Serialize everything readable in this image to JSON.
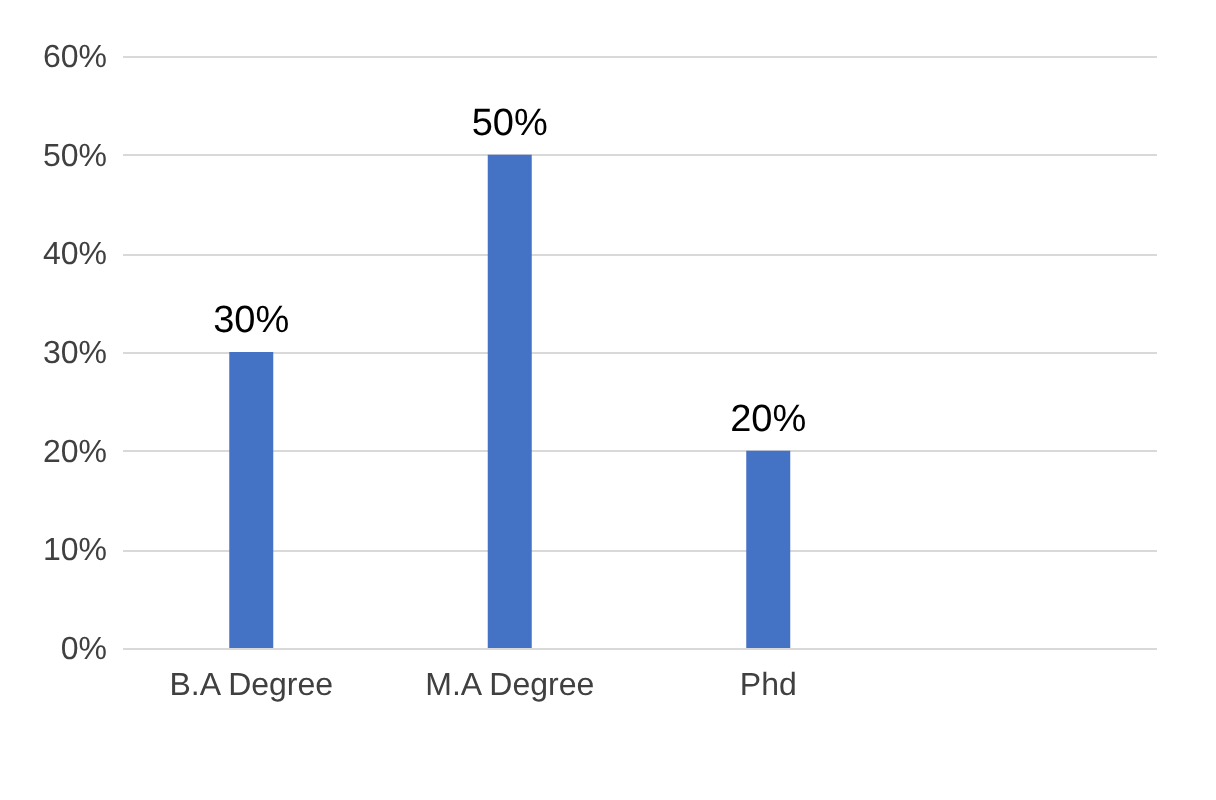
{
  "chart_data": {
    "type": "bar",
    "categories": [
      "B.A Degree",
      "M.A Degree",
      "Phd",
      null
    ],
    "values": [
      30,
      50,
      20,
      null
    ],
    "color": "#4472c4",
    "value_labels": [
      "30%",
      "50%",
      "20%",
      null
    ],
    "ylim": [
      0,
      60
    ],
    "yticks": [
      {
        "value": 0,
        "label": "0%"
      },
      {
        "value": 10,
        "label": "10%"
      },
      {
        "value": 20,
        "label": "20%"
      },
      {
        "value": 30,
        "label": "30%"
      },
      {
        "value": 40,
        "label": "40%"
      },
      {
        "value": 50,
        "label": "50%"
      },
      {
        "value": 60,
        "label": "60%"
      }
    ],
    "grid": "y"
  }
}
